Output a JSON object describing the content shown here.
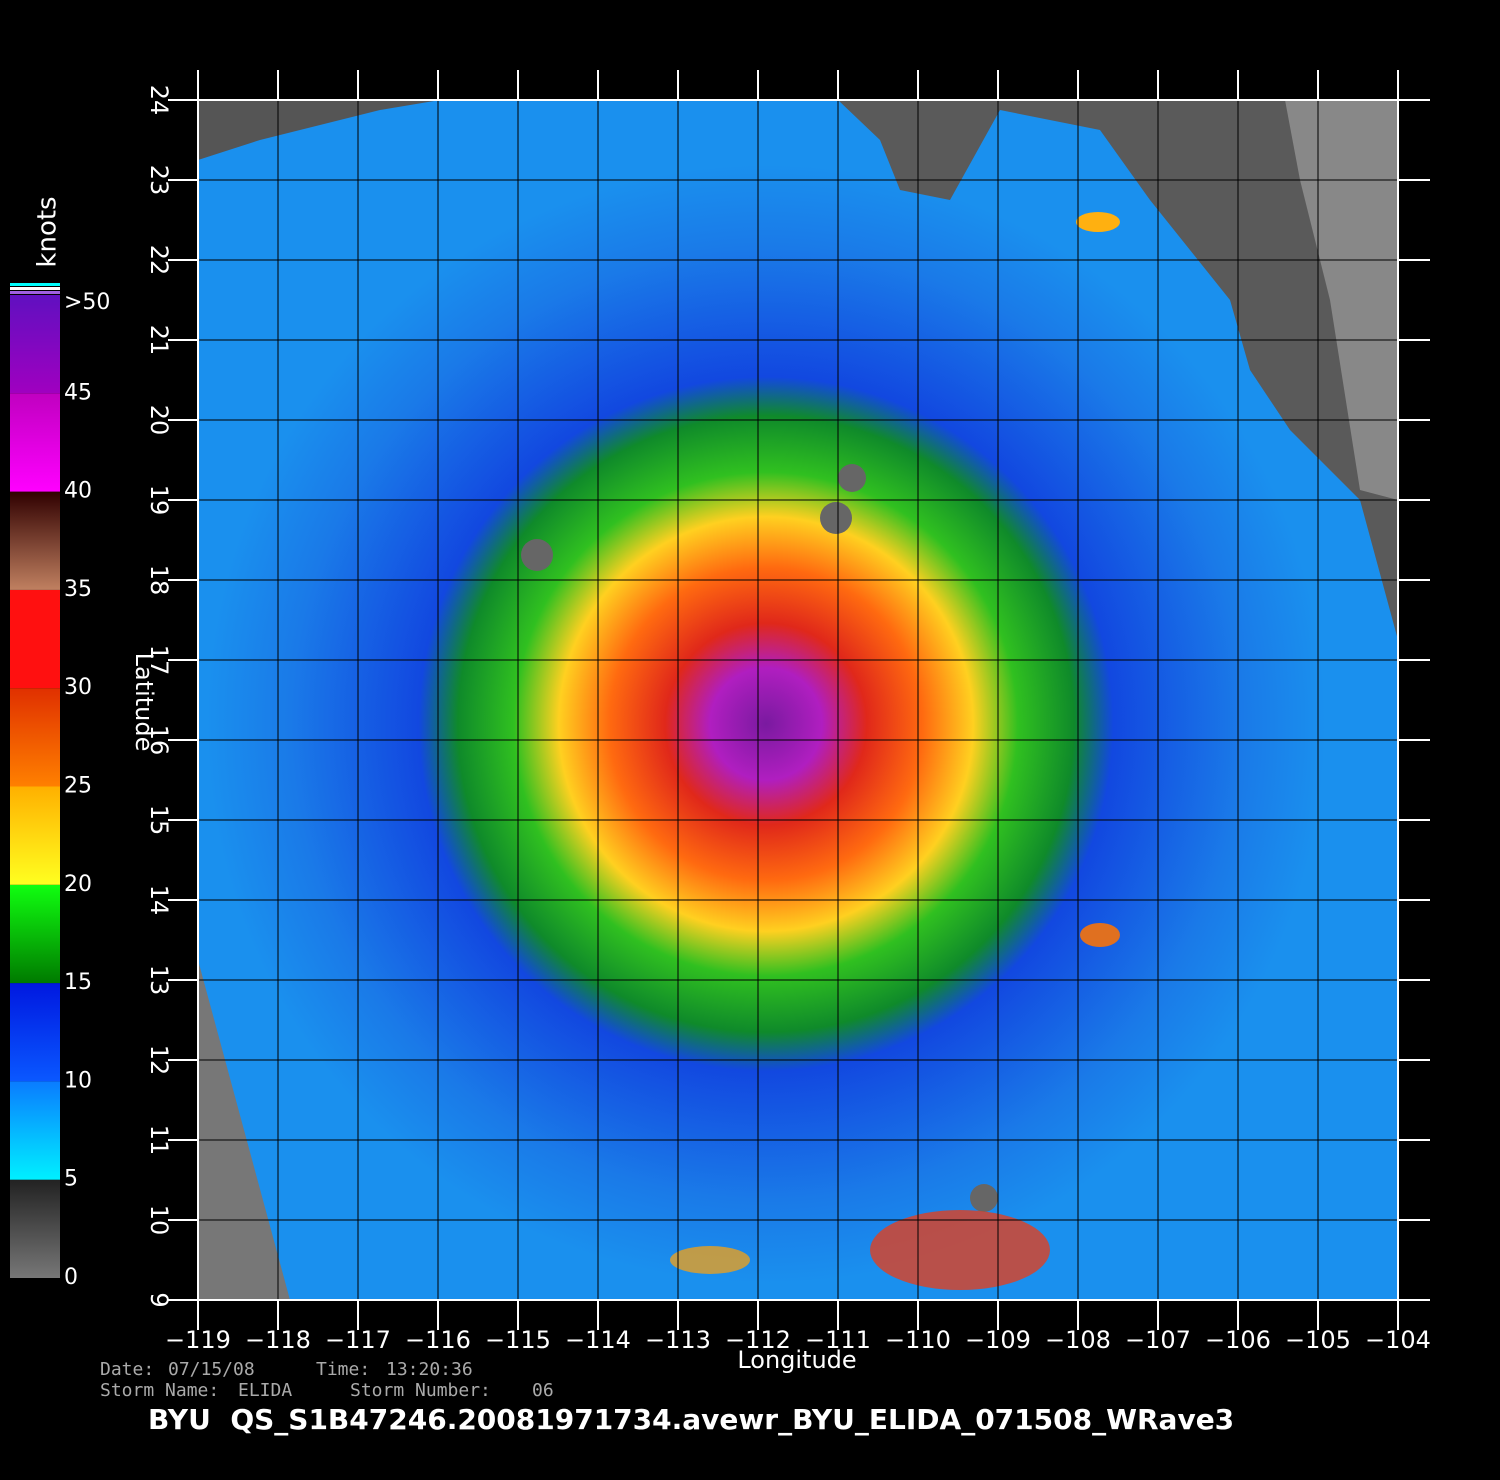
{
  "map": {
    "xlabel": "Longitude",
    "ylabel": "Latitude",
    "xlim": [
      -119,
      -104
    ],
    "ylim": [
      9,
      24
    ],
    "xticks": [
      {
        "value": -119,
        "label": "−119"
      },
      {
        "value": -118,
        "label": "−118"
      },
      {
        "value": -117,
        "label": "−117"
      },
      {
        "value": -116,
        "label": "−116"
      },
      {
        "value": -115,
        "label": "−115"
      },
      {
        "value": -114,
        "label": "−114"
      },
      {
        "value": -113,
        "label": "−113"
      },
      {
        "value": -112,
        "label": "−112"
      },
      {
        "value": -111,
        "label": "−111"
      },
      {
        "value": -110,
        "label": "−110"
      },
      {
        "value": -109,
        "label": "−109"
      },
      {
        "value": -108,
        "label": "−108"
      },
      {
        "value": -107,
        "label": "−107"
      },
      {
        "value": -106,
        "label": "−106"
      },
      {
        "value": -105,
        "label": "−105"
      },
      {
        "value": -104,
        "label": "−104"
      }
    ],
    "yticks": [
      9,
      10,
      11,
      12,
      13,
      14,
      15,
      16,
      17,
      18,
      19,
      20,
      21,
      22,
      23,
      24
    ]
  },
  "colorbar": {
    "title": "knots",
    "lim": [
      0,
      50
    ],
    "ticks": [
      0,
      5,
      10,
      15,
      20,
      25,
      30,
      35,
      40,
      45,
      {
        "value": 50,
        "label": ">50"
      }
    ]
  },
  "info": {
    "date_label": "Date:",
    "date": "07/15/08",
    "time_label": "Time:",
    "time": "13:20:36",
    "storm_name_label": "Storm Name:",
    "storm_name": "ELIDA",
    "storm_number_label": "Storm Number:",
    "storm_number": "06"
  },
  "footer": "BYU  QS_S1B47246.20081971734.avewr_BYU_ELIDA_071508_WRave3"
}
